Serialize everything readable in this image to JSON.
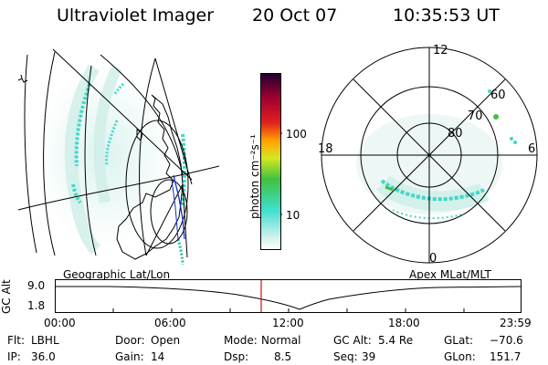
{
  "header": {
    "instrument": "Ultraviolet Imager",
    "date": "20 Oct 07",
    "time": "10:35:53 UT"
  },
  "colorbar": {
    "label": "photon cm⁻²s⁻¹",
    "ticks": [
      "100",
      "10"
    ]
  },
  "geo_panel": {
    "caption": "Geographic Lat/Lon"
  },
  "apex_panel": {
    "caption": "Apex MLat/MLT",
    "mlt_labels": [
      "12",
      "18",
      "6",
      "0"
    ],
    "lat_labels": [
      "60",
      "70",
      "80"
    ]
  },
  "altitude_plot": {
    "ylabel": "GC Alt",
    "yticks": [
      "9.0",
      "1.8"
    ],
    "xticks": [
      "00:00",
      "06:00",
      "12:00",
      "18:00",
      "23:59"
    ],
    "current_time_marker": "10:35:53",
    "marker_color": "#d01010"
  },
  "status": {
    "filter_label": "Flt:",
    "filter_value": "LBHL",
    "ip_label": "IP:",
    "ip_value": "36.0",
    "door_label": "Door:",
    "door_value": "Open",
    "gain_label": "Gain:",
    "gain_value": "14",
    "mode_label": "Mode:",
    "mode_value": "Normal",
    "dsp_label": "Dsp:",
    "dsp_value": "8.5",
    "gcalt_label": "GC Alt:",
    "gcalt_value": "5.4 Re",
    "seq_label": "Seq:",
    "seq_value": "39",
    "glat_label": "GLat:",
    "glat_value": "−70.6",
    "glon_label": "GLon:",
    "glon_value": "151.7"
  },
  "palette": {
    "colorbar_stops": [
      "#ffffff",
      "#c8f0ec",
      "#40e0d0",
      "#40c040",
      "#d8e820",
      "#ffa000",
      "#e02020",
      "#a00030",
      "#200030"
    ],
    "emission": "#40d8c8",
    "emission_strong": "#28b8a8"
  }
}
